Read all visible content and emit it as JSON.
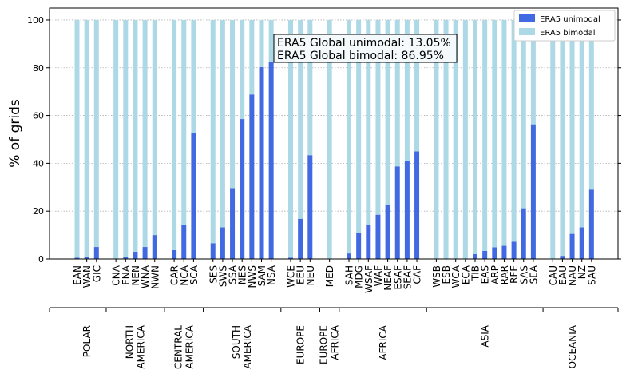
{
  "chart_data": {
    "type": "bar",
    "stacked": true,
    "ylabel": "% of grids",
    "xlabel": "",
    "ylim": [
      0,
      105
    ],
    "yticks": [
      0,
      20,
      40,
      60,
      80,
      100
    ],
    "grid": "horizontal-dotted",
    "legend_position": "top-right",
    "annotations": [
      "ERA5 Global unimodal: 13.05%",
      "ERA5 Global bimodal: 86.95%"
    ],
    "categories": [
      "EAN",
      "WAN",
      "GIC",
      "CNA",
      "ENA",
      "NEN",
      "WNA",
      "NWN",
      "CAR",
      "NCA",
      "SCA",
      "SES",
      "SWS",
      "SSA",
      "NES",
      "NWS",
      "SAM",
      "NSA",
      "WCE",
      "EEU",
      "NEU",
      "MED",
      "SAH",
      "MDG",
      "WSAF",
      "WAF",
      "NEAF",
      "ESAF",
      "SEAF",
      "CAF",
      "WSB",
      "ESB",
      "WCA",
      "ECA",
      "TIB",
      "EAS",
      "ARP",
      "RAR",
      "RFE",
      "SAS",
      "SEA",
      "CAU",
      "EAU",
      "NAU",
      "NZ",
      "SAU"
    ],
    "series": [
      {
        "name": "ERA5 unimodal",
        "color": "#4169e1",
        "values": [
          0.5,
          1,
          5,
          0,
          1,
          3,
          5,
          10,
          3.7,
          14.2,
          52.5,
          6.6,
          13.2,
          29.6,
          58.5,
          68.8,
          80.3,
          82.5,
          0.5,
          16.8,
          43.4,
          0,
          2.3,
          10.8,
          14.1,
          18.5,
          22.8,
          38.7,
          41.1,
          45,
          0,
          0,
          0,
          0,
          2,
          3.4,
          4.9,
          5.5,
          7.2,
          21.2,
          56.3,
          0,
          1.3,
          10.5,
          13.2,
          29
        ]
      },
      {
        "name": "ERA5 bimodal",
        "color": "#add8e6",
        "values": [
          99.5,
          99,
          95,
          100,
          99,
          97,
          95,
          90,
          96.3,
          85.8,
          47.5,
          93.4,
          86.8,
          70.4,
          41.5,
          31.2,
          19.7,
          17.5,
          99.5,
          83.2,
          56.6,
          100,
          97.7,
          89.2,
          85.9,
          81.5,
          77.2,
          61.3,
          58.9,
          55,
          100,
          100,
          100,
          100,
          98,
          96.6,
          95.1,
          94.5,
          92.8,
          78.8,
          43.7,
          100,
          98.7,
          89.5,
          86.8,
          71
        ]
      }
    ],
    "region_groups": [
      {
        "label1": "POLAR",
        "label2": "",
        "count": 3
      },
      {
        "label1": "NORTH",
        "label2": "AMERICA",
        "count": 5
      },
      {
        "label1": "CENTRAL",
        "label2": "AMERICA",
        "count": 3
      },
      {
        "label1": "SOUTH",
        "label2": "AMERICA",
        "count": 7
      },
      {
        "label1": "EUROPE",
        "label2": "",
        "count": 3
      },
      {
        "label1": "EUROPE",
        "label2": "AFRICA",
        "count": 1
      },
      {
        "label1": "AFRICA",
        "label2": "",
        "count": 8
      },
      {
        "label1": "ASIA",
        "label2": "",
        "count": 11
      },
      {
        "label1": "OCEANIA",
        "label2": "",
        "count": 5
      }
    ]
  }
}
